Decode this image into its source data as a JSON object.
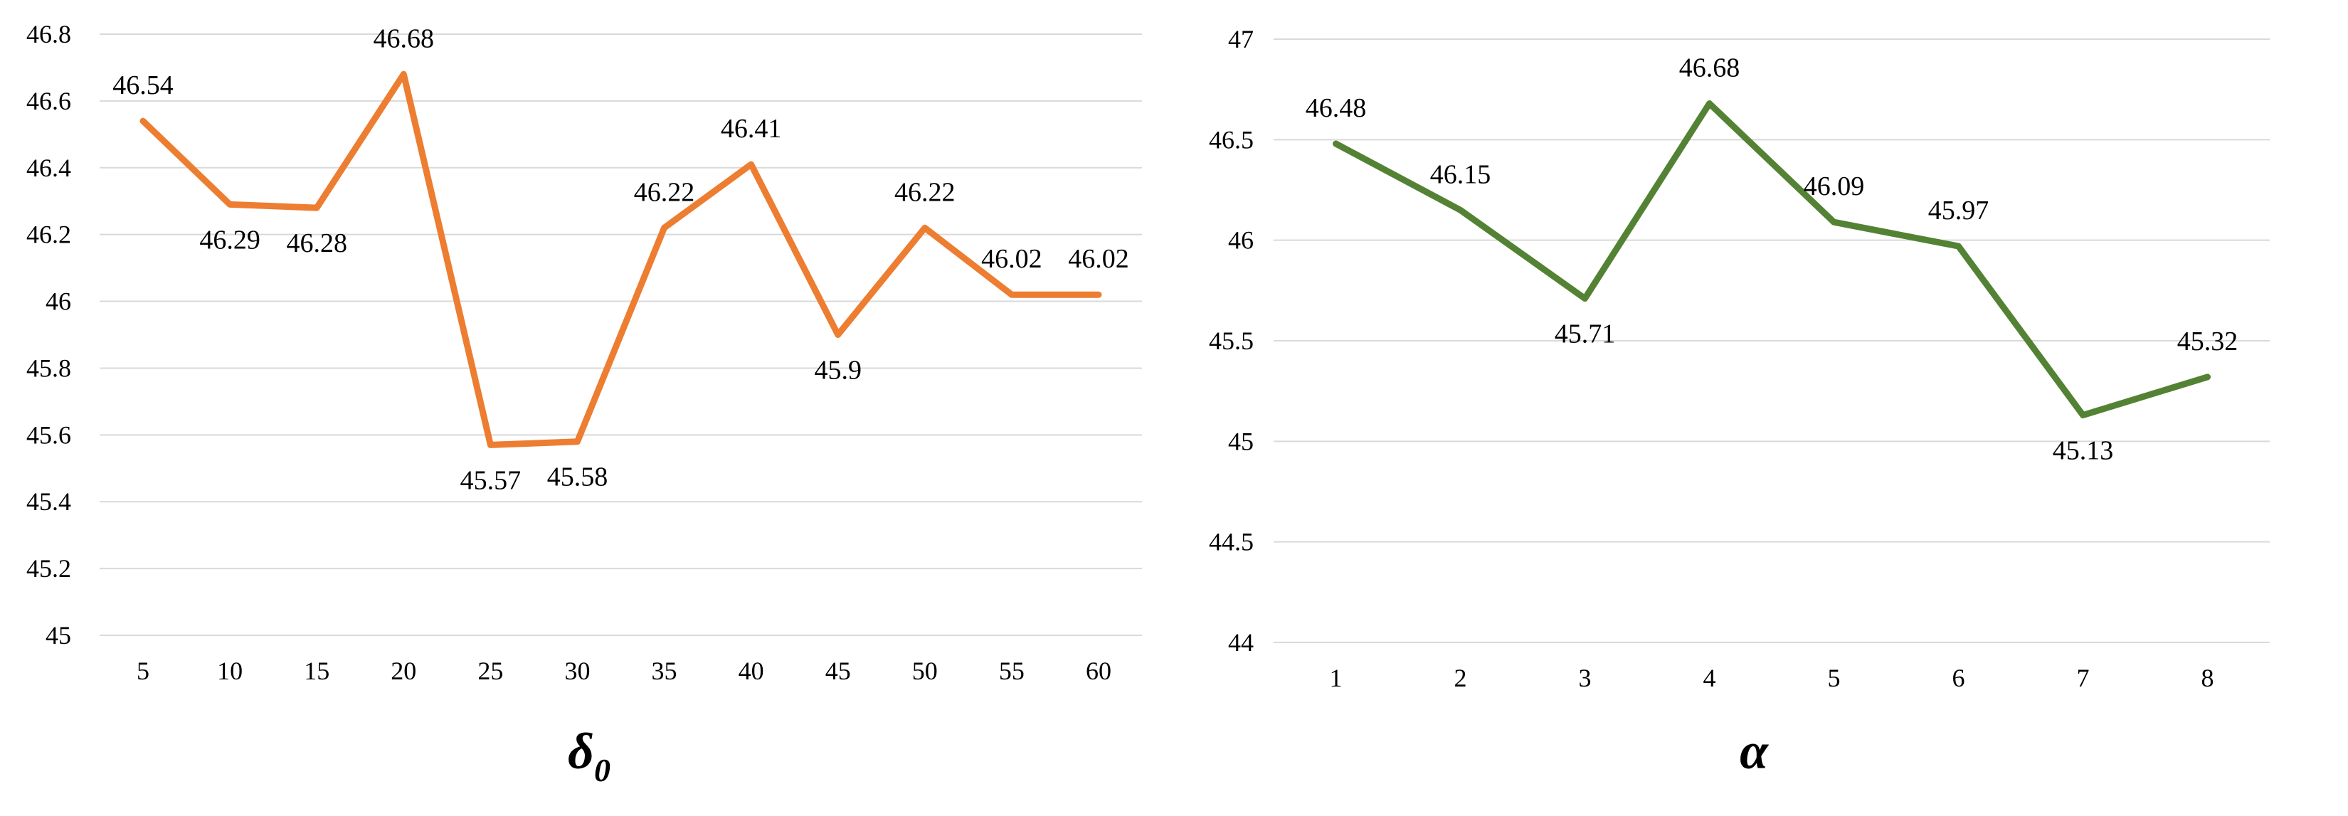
{
  "chart_data": [
    {
      "type": "line",
      "xlabel": "δ",
      "xlabel_subscript": "0",
      "x": [
        "5",
        "10",
        "15",
        "20",
        "25",
        "30",
        "35",
        "40",
        "45",
        "50",
        "55",
        "60"
      ],
      "series": [
        {
          "values": [
            46.54,
            46.29,
            46.28,
            46.68,
            45.57,
            45.58,
            46.22,
            46.41,
            45.9,
            46.22,
            46.02,
            46.02
          ],
          "color": "#ED7D31"
        }
      ],
      "data_labels": [
        "46.54",
        "46.29",
        "46.28",
        "46.68",
        "45.57",
        "45.58",
        "46.22",
        "46.41",
        "45.9",
        "46.22",
        "46.02",
        "46.02"
      ],
      "ylim": [
        45,
        46.8
      ],
      "yticks": [
        "45",
        "45.2",
        "45.4",
        "45.6",
        "45.8",
        "46",
        "46.2",
        "46.4",
        "46.6",
        "46.8"
      ],
      "grid": true
    },
    {
      "type": "line",
      "xlabel": "α",
      "x": [
        "1",
        "2",
        "3",
        "4",
        "5",
        "6",
        "7",
        "8"
      ],
      "series": [
        {
          "values": [
            46.48,
            46.15,
            45.71,
            46.68,
            46.09,
            45.97,
            45.13,
            45.32
          ],
          "color": "#548235"
        }
      ],
      "data_labels": [
        "46.48",
        "46.15",
        "45.71",
        "46.68",
        "46.09",
        "45.97",
        "45.13",
        "45.32"
      ],
      "ylim": [
        44,
        47
      ],
      "yticks": [
        "44",
        "44.5",
        "45",
        "45.5",
        "46",
        "46.5",
        "47"
      ],
      "grid": true
    }
  ]
}
